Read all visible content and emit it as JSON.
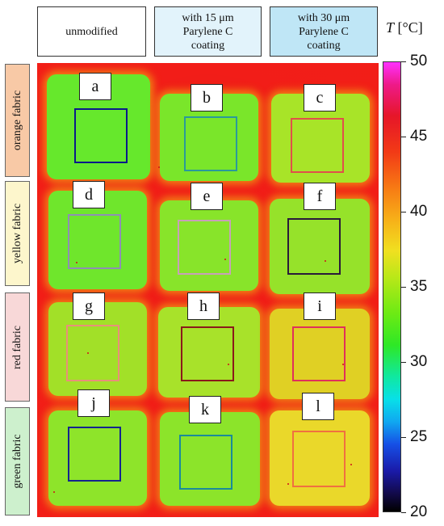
{
  "columns": [
    {
      "label": "unmodified",
      "bg": "#ffffff"
    },
    {
      "label": "with 15 μm\nParylene C\ncoating",
      "bg": "#e2f3fb"
    },
    {
      "label": "with 30 μm\nParylene C\ncoating",
      "bg": "#bfe6f6"
    }
  ],
  "rows": [
    {
      "label": "orange fabric",
      "bg": "#f8c9a6"
    },
    {
      "label": "yellow fabric",
      "bg": "#fdf6cc"
    },
    {
      "label": "red fabric",
      "bg": "#f8d8d8"
    },
    {
      "label": "green fabric",
      "bg": "#cdf0cd"
    }
  ],
  "samples": [
    {
      "letter": "a",
      "fill": "#66e82c",
      "roi_color": "#0a1a8a"
    },
    {
      "letter": "b",
      "fill": "#7ae62a",
      "roi_color": "#2a9a9a"
    },
    {
      "letter": "c",
      "fill": "#a8e428",
      "roi_color": "#e0504a"
    },
    {
      "letter": "d",
      "fill": "#6fe62c",
      "roi_color": "#8e8eb4"
    },
    {
      "letter": "e",
      "fill": "#88e42a",
      "roi_color": "#c8a0b8"
    },
    {
      "letter": "f",
      "fill": "#96e22a",
      "roi_color": "#2a1a3a"
    },
    {
      "letter": "g",
      "fill": "#a2e028",
      "roi_color": "#e8907a"
    },
    {
      "letter": "h",
      "fill": "#a8e22a",
      "roi_color": "#8a1a1a"
    },
    {
      "letter": "i",
      "fill": "#e0d024",
      "roi_color": "#e0305a"
    },
    {
      "letter": "j",
      "fill": "#8ee42a",
      "roi_color": "#14248e"
    },
    {
      "letter": "k",
      "fill": "#8ce42a",
      "roi_color": "#1a8a9a"
    },
    {
      "letter": "l",
      "fill": "#ead82a",
      "roi_color": "#f07040"
    }
  ],
  "colorbar": {
    "title_var": "T",
    "title_unit": " [°C]",
    "min": 20,
    "max": 50,
    "ticks": [
      "20",
      "25",
      "30",
      "35",
      "40",
      "45",
      "50"
    ]
  }
}
